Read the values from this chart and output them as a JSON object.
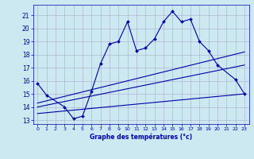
{
  "xlabel": "Graphe des températures (°c)",
  "bg_color": "#cce8f0",
  "grid_color": "#aaaacc",
  "line_color": "#0000aa",
  "xlim": [
    -0.5,
    23.5
  ],
  "ylim": [
    12.7,
    21.8
  ],
  "yticks": [
    13,
    14,
    15,
    16,
    17,
    18,
    19,
    20,
    21
  ],
  "xticks": [
    0,
    1,
    2,
    3,
    4,
    5,
    6,
    7,
    8,
    9,
    10,
    11,
    12,
    13,
    14,
    15,
    16,
    17,
    18,
    19,
    20,
    21,
    22,
    23
  ],
  "lines": [
    {
      "x": [
        0,
        1,
        3,
        4,
        5,
        6,
        7,
        8,
        9,
        10,
        11,
        12,
        13,
        14,
        15,
        16,
        17,
        18,
        19,
        20,
        22,
        23
      ],
      "y": [
        15.8,
        14.9,
        14.0,
        13.1,
        13.3,
        15.2,
        17.3,
        18.8,
        19.0,
        20.5,
        18.3,
        18.5,
        19.2,
        20.5,
        21.3,
        20.5,
        20.7,
        19.0,
        18.3,
        17.2,
        16.1,
        15.0
      ]
    },
    {
      "x": [
        0,
        23
      ],
      "y": [
        13.5,
        15.0
      ]
    },
    {
      "x": [
        0,
        23
      ],
      "y": [
        14.0,
        17.2
      ]
    },
    {
      "x": [
        0,
        23
      ],
      "y": [
        14.3,
        18.2
      ]
    }
  ]
}
